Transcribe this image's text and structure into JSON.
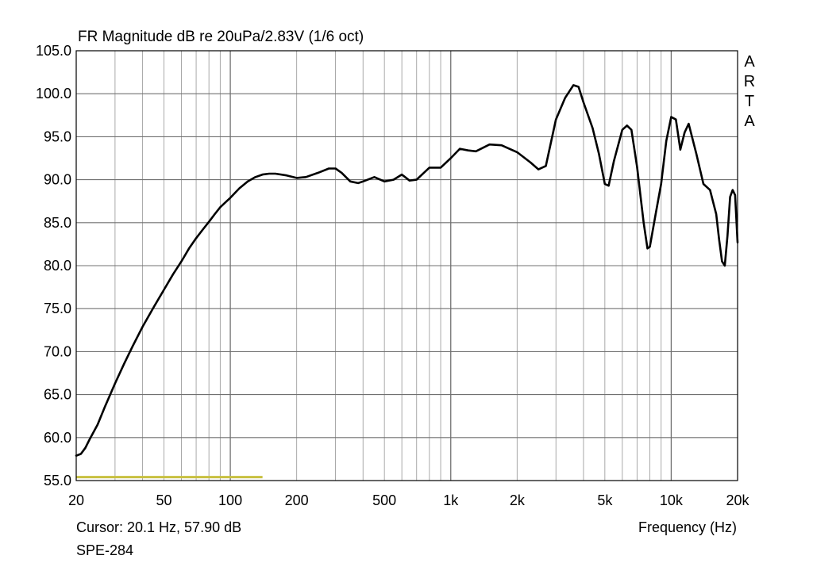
{
  "chart_data": {
    "type": "line",
    "title": "FR Magnitude dB re 20uPa/2.83V (1/6 oct)",
    "xlabel": "Frequency (Hz)",
    "ylabel": "",
    "x_scale": "log",
    "xlim": [
      20,
      20000
    ],
    "ylim": [
      55,
      105
    ],
    "grid": true,
    "y_ticks": [
      105,
      100,
      95,
      90,
      85,
      80,
      75,
      70,
      65,
      60,
      55
    ],
    "y_tick_labels": [
      "105.0",
      "100.0",
      "95.0",
      "90.0",
      "85.0",
      "80.0",
      "75.0",
      "70.0",
      "65.0",
      "60.0",
      "55.0"
    ],
    "x_ticks": [
      20,
      50,
      100,
      200,
      500,
      1000,
      2000,
      5000,
      10000,
      20000
    ],
    "x_tick_labels": [
      "20",
      "50",
      "100",
      "200",
      "500",
      "1k",
      "2k",
      "5k",
      "10k",
      "20k"
    ],
    "cursor_text": "Cursor: 20.1 Hz, 57.90 dB",
    "model_label": "SPE-284",
    "brand_letters": [
      "A",
      "R",
      "T",
      "A"
    ],
    "colors": {
      "curve": "#000000",
      "grid": "#a0a0a0",
      "frame": "#000000",
      "marker": "#c8c040"
    },
    "marker_line": {
      "x": [
        20,
        140
      ],
      "y": 55.4
    },
    "series": [
      {
        "x": [
          20,
          21,
          22,
          23,
          25,
          27,
          30,
          33,
          36,
          40,
          45,
          50,
          55,
          60,
          65,
          70,
          75,
          80,
          85,
          90,
          100,
          110,
          120,
          130,
          140,
          150,
          160,
          180,
          200,
          220,
          250,
          280,
          300,
          320,
          350,
          380,
          400,
          450,
          500,
          550,
          600,
          650,
          700,
          800,
          900,
          1000,
          1100,
          1200,
          1300,
          1500,
          1700,
          2000,
          2300,
          2500,
          2700,
          3000,
          3300,
          3600,
          3800,
          4000,
          4400,
          4700,
          5000,
          5200,
          5500,
          6000,
          6300,
          6600,
          7000,
          7500,
          7800,
          8000,
          8500,
          9000,
          9500,
          10000,
          10500,
          11000,
          11500,
          12000,
          13000,
          14000,
          15000,
          16000,
          16500,
          17000,
          17500,
          18000,
          18500,
          19000,
          19500,
          20000
        ],
        "y": [
          57.9,
          58.1,
          58.8,
          59.8,
          61.5,
          63.6,
          66.3,
          68.6,
          70.6,
          72.9,
          75.2,
          77.2,
          79.0,
          80.5,
          82.0,
          83.2,
          84.2,
          85.1,
          86.0,
          86.8,
          87.9,
          89.0,
          89.8,
          90.3,
          90.6,
          90.7,
          90.7,
          90.5,
          90.2,
          90.3,
          90.8,
          91.3,
          91.3,
          90.8,
          89.8,
          89.6,
          89.8,
          90.3,
          89.8,
          90.0,
          90.6,
          89.9,
          90.0,
          91.4,
          91.4,
          92.5,
          93.6,
          93.4,
          93.3,
          94.1,
          94.0,
          93.2,
          92.0,
          91.2,
          91.6,
          97.0,
          99.5,
          101.0,
          100.8,
          99.0,
          96.0,
          93.0,
          89.5,
          89.3,
          92.2,
          95.8,
          96.3,
          95.8,
          91.5,
          85.0,
          82.0,
          82.2,
          86.0,
          89.5,
          94.5,
          97.3,
          97.0,
          93.5,
          95.5,
          96.5,
          93.0,
          89.5,
          88.8,
          86.0,
          83.0,
          80.5,
          80.0,
          83.5,
          88.0,
          88.8,
          88.2,
          82.7
        ]
      }
    ]
  }
}
